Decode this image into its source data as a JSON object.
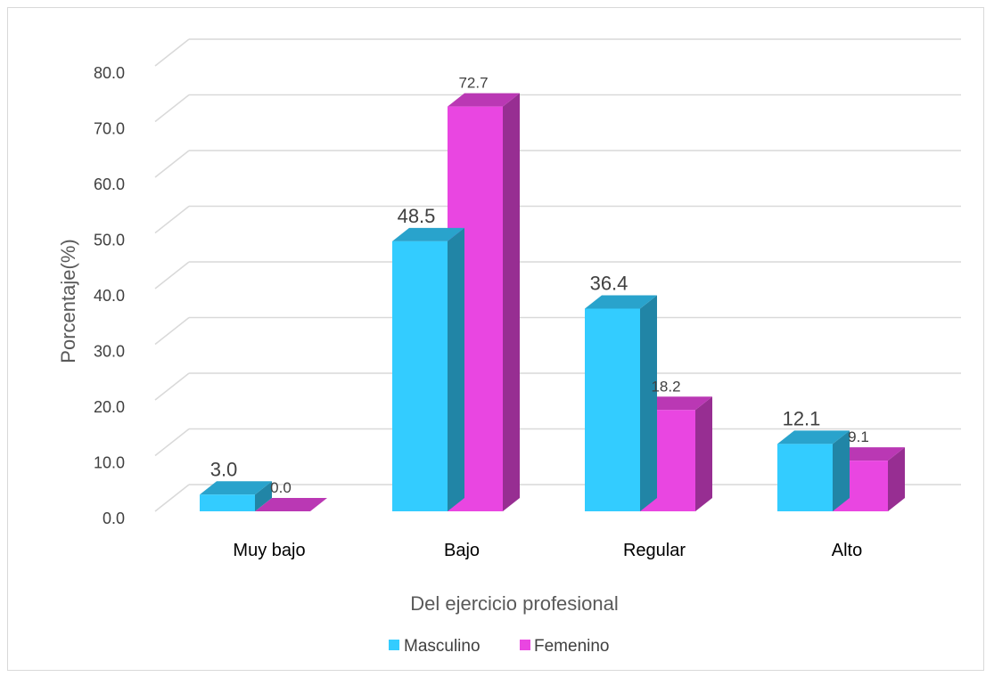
{
  "colors": {
    "masculino": "#33CCFF",
    "femenino": "#E946E1",
    "gridline": "#d9d9d9",
    "frame_border": "#d9d9d9"
  },
  "chart_data": {
    "type": "bar",
    "style": "3d-clustered-column",
    "categories": [
      "Muy bajo",
      "Bajo",
      "Regular",
      "Alto"
    ],
    "series": [
      {
        "name": "Masculino",
        "values": [
          3.0,
          48.5,
          36.4,
          12.1
        ]
      },
      {
        "name": "Femenino",
        "values": [
          0.0,
          72.7,
          18.2,
          9.1
        ]
      }
    ],
    "data_labels": {
      "Masculino": [
        "3.0",
        "48.5",
        "36.4",
        "12.1"
      ],
      "Femenino": [
        "0.0",
        "72.7",
        "18.2",
        "9.1"
      ]
    },
    "title": "",
    "xlabel": "Del ejercicio profesional",
    "ylabel": "Porcentaje(%)",
    "ylim": [
      0,
      80
    ],
    "yticks": [
      "0.0",
      "10.0",
      "20.0",
      "30.0",
      "40.0",
      "50.0",
      "60.0",
      "70.0",
      "80.0"
    ],
    "grid": true,
    "legend_position": "bottom"
  }
}
